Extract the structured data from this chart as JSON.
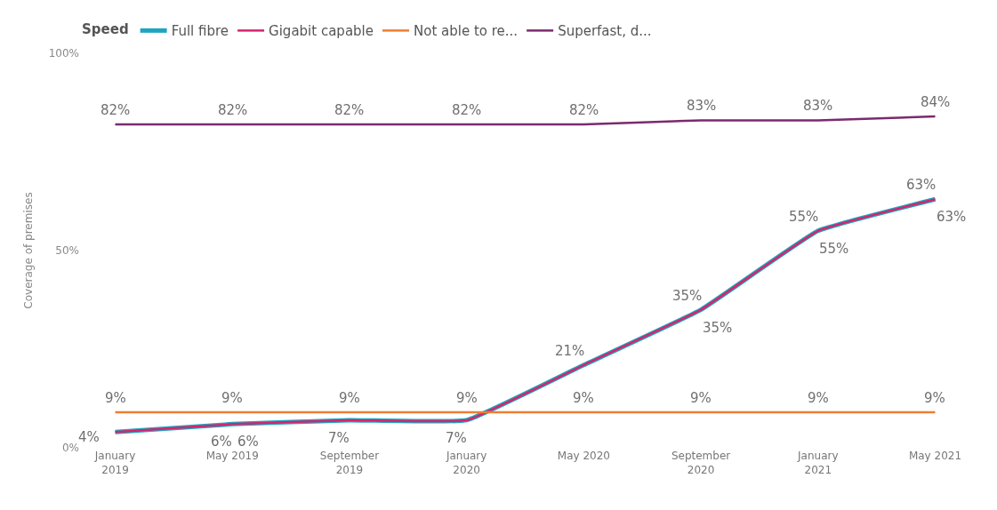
{
  "chart_data": {
    "type": "line",
    "ylabel": "Coverage of premises",
    "legend_title": "Speed",
    "legend": "top",
    "categories": [
      "January 2019",
      "May 2019",
      "September 2019",
      "January 2020",
      "May 2020",
      "September 2020",
      "January 2021",
      "May 2021"
    ],
    "ylim": [
      0,
      100
    ],
    "grid": false,
    "yticks": [
      {
        "value": 0,
        "label": "0%"
      },
      {
        "value": 50,
        "label": "50%"
      },
      {
        "value": 100,
        "label": "100%"
      }
    ],
    "series": [
      {
        "name": "Full fibre",
        "color": "#1fa5c0",
        "values": [
          4,
          6,
          7,
          7,
          21,
          35,
          55,
          63
        ],
        "value_labels": [
          "4%",
          "6%",
          "7%",
          "7%",
          "21%",
          "35%",
          "55%",
          "63%"
        ]
      },
      {
        "name": "Gigabit capable",
        "color": "#d6246e",
        "values": [
          4,
          6,
          7,
          7,
          21,
          35,
          55,
          63
        ],
        "value_labels": [
          null,
          "6%",
          null,
          null,
          null,
          "35%",
          "55%",
          "63%"
        ]
      },
      {
        "name": "Not able to re...",
        "color": "#ee7d31",
        "values": [
          9,
          9,
          9,
          9,
          9,
          9,
          9,
          9
        ],
        "value_labels": [
          "9%",
          "9%",
          "9%",
          "9%",
          "9%",
          "9%",
          "9%",
          "9%"
        ]
      },
      {
        "name": "Superfast, d...",
        "color": "#7b2a6d",
        "values": [
          82,
          82,
          82,
          82,
          82,
          83,
          83,
          84
        ],
        "value_labels": [
          "82%",
          "82%",
          "82%",
          "82%",
          "82%",
          "83%",
          "83%",
          "84%"
        ]
      }
    ]
  }
}
